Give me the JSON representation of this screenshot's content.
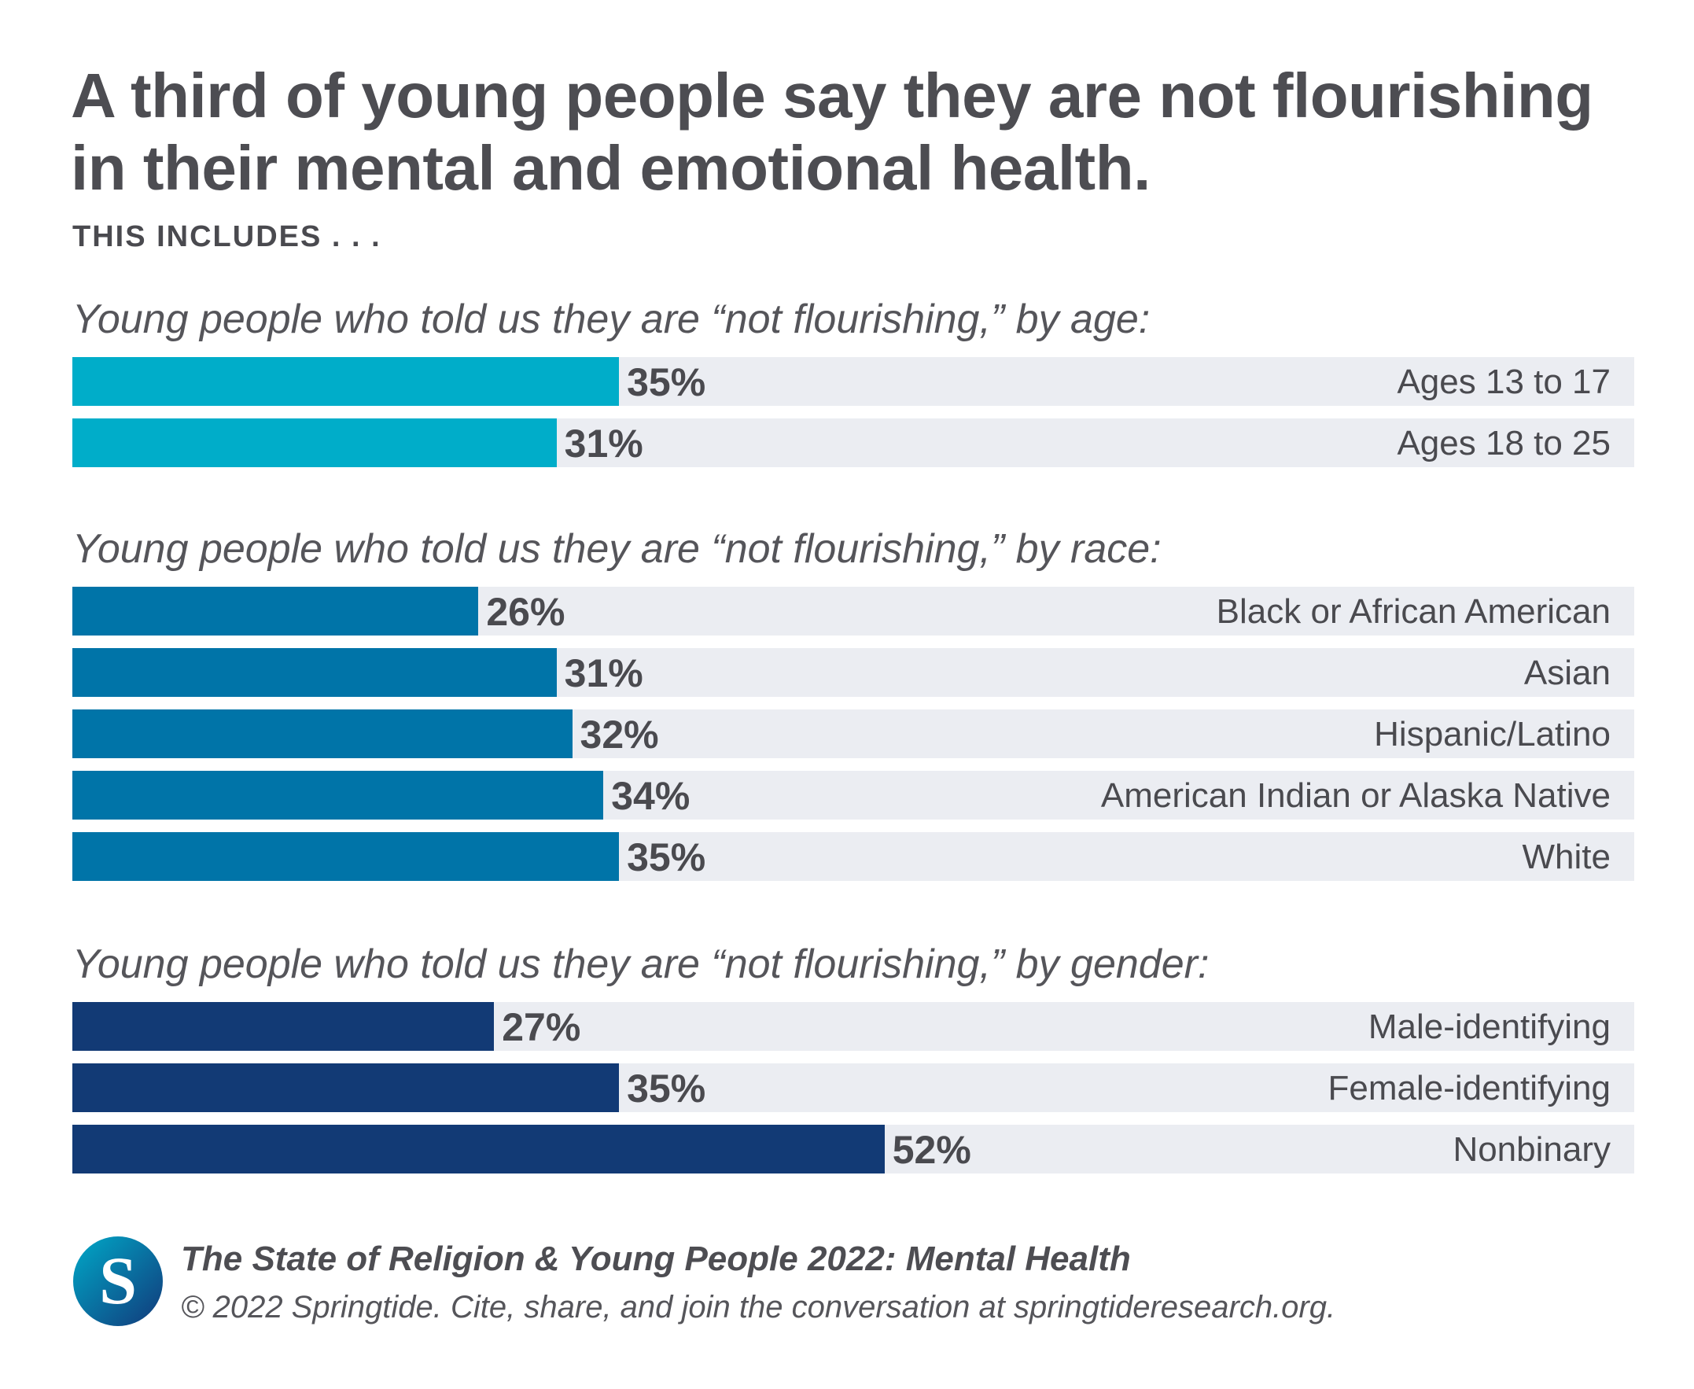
{
  "title": "A third of young people say they are not flourishing in their mental and emotional health.",
  "subtitle": "THIS INCLUDES . . .",
  "colors": {
    "age": "#00adc9",
    "race": "#0074a8",
    "gender": "#123a75",
    "track": "#ebedf2"
  },
  "chart_data": [
    {
      "type": "bar",
      "orientation": "horizontal",
      "title": "Young people who told us they are “not flourishing,” by age:",
      "categories": [
        "Ages 13 to 17",
        "Ages 18 to 25"
      ],
      "values": [
        35,
        31
      ],
      "labels": [
        "35%",
        "31%"
      ],
      "xlim": [
        0,
        100
      ]
    },
    {
      "type": "bar",
      "orientation": "horizontal",
      "title": "Young people who told us they are “not flourishing,” by race:",
      "categories": [
        "Black or African American",
        "Asian",
        "Hispanic/Latino",
        "American Indian or Alaska Native",
        "White"
      ],
      "values": [
        26,
        31,
        32,
        34,
        35
      ],
      "labels": [
        "26%",
        "31%",
        "32%",
        "34%",
        "35%"
      ],
      "xlim": [
        0,
        100
      ]
    },
    {
      "type": "bar",
      "orientation": "horizontal",
      "title": "Young people who told us they are “not flourishing,” by gender:",
      "categories": [
        "Male-identifying",
        "Female-identifying",
        "Nonbinary"
      ],
      "values": [
        27,
        35,
        52
      ],
      "labels": [
        "27%",
        "35%",
        "52%"
      ],
      "xlim": [
        0,
        100
      ]
    }
  ],
  "footer": {
    "logo_letter": "S",
    "source": "The State of Religion & Young People 2022: Mental Health",
    "copyright": "© 2022 Springtide. Cite, share, and join the conversation at springtideresearch.org."
  }
}
